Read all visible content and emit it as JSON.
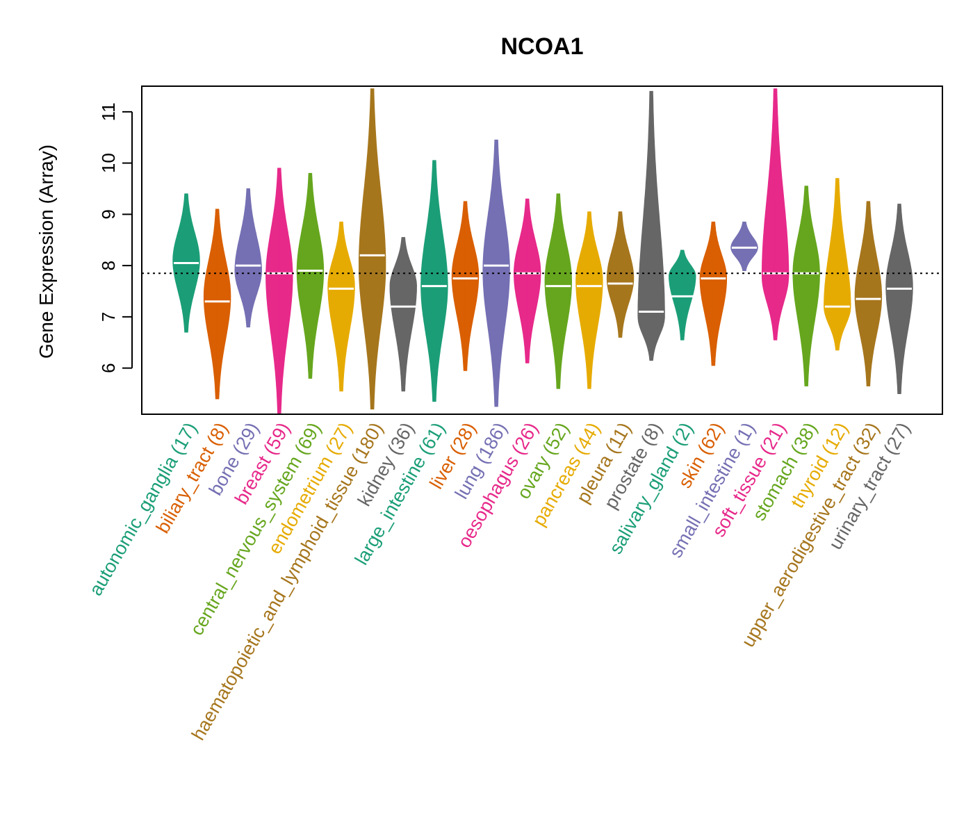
{
  "chart_data": {
    "type": "violin",
    "title": "NCOA1",
    "xlabel": "",
    "ylabel": "Gene Expression (Array)",
    "ylim": [
      5.1,
      11.5
    ],
    "yticks": [
      6,
      7,
      8,
      9,
      10,
      11
    ],
    "reference_line": 7.85,
    "grid": false,
    "legend": "none",
    "categories": [
      {
        "label": "autonomic_ganglia (17)",
        "color": "#1B9E77",
        "min": 6.7,
        "max": 9.4,
        "median": 8.05,
        "mode": 8.1
      },
      {
        "label": "biliary_tract (8)",
        "color": "#D95F02",
        "min": 5.4,
        "max": 9.1,
        "median": 7.3,
        "mode": 7.4
      },
      {
        "label": "bone (29)",
        "color": "#7570B3",
        "min": 6.8,
        "max": 9.5,
        "median": 8.0,
        "mode": 7.9
      },
      {
        "label": "breast (59)",
        "color": "#E7298A",
        "min": 5.1,
        "max": 9.9,
        "median": 7.85,
        "mode": 7.8
      },
      {
        "label": "central_nervous_system (69)",
        "color": "#66A61E",
        "min": 5.8,
        "max": 9.8,
        "median": 7.9,
        "mode": 7.9
      },
      {
        "label": "endometrium (27)",
        "color": "#E6AB02",
        "min": 5.55,
        "max": 8.85,
        "median": 7.55,
        "mode": 7.6
      },
      {
        "label": "haematopoietic_and_lymphoid_tissue (180)",
        "color": "#A6761D",
        "min": 5.2,
        "max": 11.45,
        "median": 8.2,
        "mode": 8.0
      },
      {
        "label": "kidney (36)",
        "color": "#666666",
        "min": 5.55,
        "max": 8.55,
        "median": 7.2,
        "mode": 7.6
      },
      {
        "label": "large_intestine (61)",
        "color": "#1B9E77",
        "min": 5.35,
        "max": 10.05,
        "median": 7.6,
        "mode": 7.6
      },
      {
        "label": "liver (28)",
        "color": "#D95F02",
        "min": 5.95,
        "max": 9.25,
        "median": 7.75,
        "mode": 7.8
      },
      {
        "label": "lung (186)",
        "color": "#7570B3",
        "min": 5.25,
        "max": 10.45,
        "median": 8.0,
        "mode": 7.9
      },
      {
        "label": "oesophagus (26)",
        "color": "#E7298A",
        "min": 6.1,
        "max": 9.3,
        "median": 7.85,
        "mode": 7.85
      },
      {
        "label": "ovary (52)",
        "color": "#66A61E",
        "min": 5.6,
        "max": 9.4,
        "median": 7.6,
        "mode": 7.7
      },
      {
        "label": "pancreas (44)",
        "color": "#E6AB02",
        "min": 5.6,
        "max": 9.05,
        "median": 7.6,
        "mode": 7.7
      },
      {
        "label": "pleura (11)",
        "color": "#A6761D",
        "min": 6.6,
        "max": 9.05,
        "median": 7.65,
        "mode": 7.75
      },
      {
        "label": "prostate (8)",
        "color": "#666666",
        "min": 6.15,
        "max": 11.4,
        "median": 7.1,
        "mode": 7.0
      },
      {
        "label": "salivary_gland (2)",
        "color": "#1B9E77",
        "min": 6.55,
        "max": 8.3,
        "median": 7.4,
        "mode": 7.8
      },
      {
        "label": "skin (62)",
        "color": "#D95F02",
        "min": 6.05,
        "max": 8.85,
        "median": 7.75,
        "mode": 7.75
      },
      {
        "label": "small_intestine (1)",
        "color": "#7570B3",
        "min": 7.9,
        "max": 8.85,
        "median": 8.35,
        "mode": 8.35
      },
      {
        "label": "soft_tissue (21)",
        "color": "#E7298A",
        "min": 6.55,
        "max": 11.45,
        "median": 7.85,
        "mode": 7.8
      },
      {
        "label": "stomach (38)",
        "color": "#66A61E",
        "min": 5.65,
        "max": 9.55,
        "median": 7.85,
        "mode": 7.85
      },
      {
        "label": "thyroid (12)",
        "color": "#E6AB02",
        "min": 6.35,
        "max": 9.7,
        "median": 7.2,
        "mode": 7.2
      },
      {
        "label": "upper_aerodigestive_tract (32)",
        "color": "#A6761D",
        "min": 5.65,
        "max": 9.25,
        "median": 7.35,
        "mode": 7.4
      },
      {
        "label": "urinary_tract (27)",
        "color": "#666666",
        "min": 5.5,
        "max": 9.2,
        "median": 7.55,
        "mode": 7.6
      }
    ]
  }
}
